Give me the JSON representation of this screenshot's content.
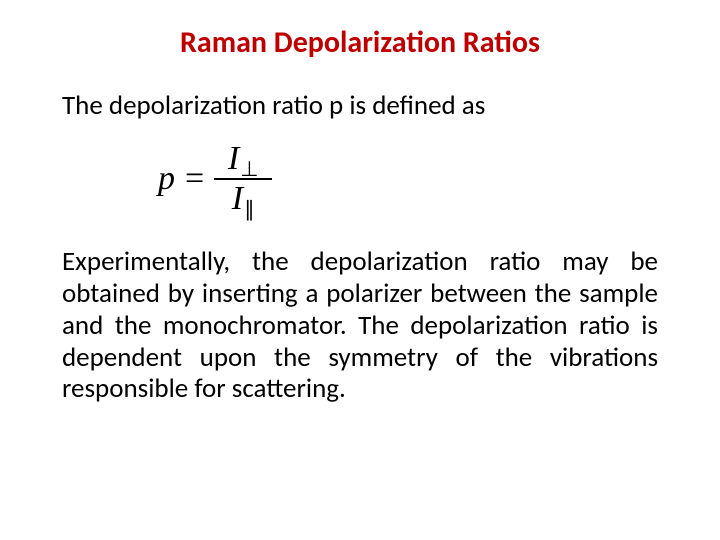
{
  "title": {
    "text": "Raman Depolarization Ratios",
    "color": "#c00000",
    "fontsize": 30
  },
  "intro": {
    "text": "The depolarization ratio p is defined as",
    "color": "#000000",
    "fontsize": 27
  },
  "equation": {
    "lhs_var": "p",
    "equals": "=",
    "num_var": "I",
    "num_sub": "⊥",
    "den_var": "I",
    "den_sub": "∥",
    "color": "#000000",
    "fontsize": 34,
    "subscript_fontsize": 21
  },
  "body": {
    "text": "Experimentally, the depolarization ratio may be obtained by inserting a polarizer between the sample and the monochromator. The depolarization ratio is dependent upon the symmetry of the vibrations responsible for scattering.",
    "color": "#000000",
    "fontsize": 27,
    "line_height": 1.18
  },
  "background_color": "#ffffff"
}
